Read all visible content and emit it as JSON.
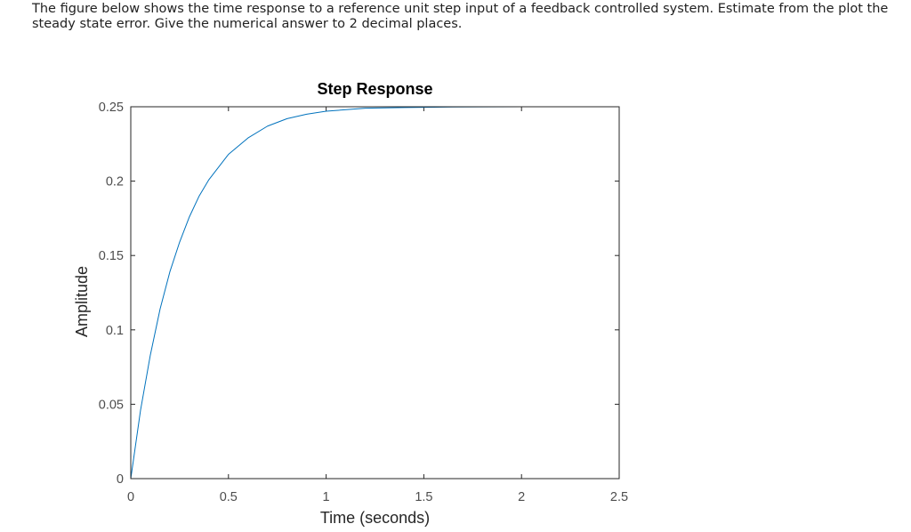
{
  "question": {
    "text": "The figure below shows the time response to a reference unit step input of a feedback controlled system. Estimate from the plot the steady state error. Give the numerical answer to 2 decimal places."
  },
  "colors": {
    "series": "#0072bd",
    "axes": "#262626",
    "ticks": "#4d4d4d"
  },
  "chart_data": {
    "type": "line",
    "title": "Step Response",
    "xlabel": "Time (seconds)",
    "ylabel": "Amplitude",
    "xlim": [
      0,
      2.5
    ],
    "ylim": [
      0,
      0.25
    ],
    "xticks": [
      "0",
      "0.5",
      "1",
      "1.5",
      "2",
      "2.5"
    ],
    "yticks": [
      "0",
      "0.05",
      "0.1",
      "0.15",
      "0.2",
      "0.25"
    ],
    "grid": false,
    "series": [
      {
        "x": [
          0,
          0.05,
          0.1,
          0.15,
          0.2,
          0.25,
          0.3,
          0.35,
          0.4,
          0.5,
          0.6,
          0.7,
          0.8,
          0.9,
          1.0,
          1.2,
          1.4,
          1.6,
          1.8,
          2.0,
          2.2,
          2.5
        ],
        "y": [
          0,
          0.046,
          0.083,
          0.114,
          0.139,
          0.159,
          0.176,
          0.19,
          0.201,
          0.218,
          0.229,
          0.237,
          0.242,
          0.245,
          0.247,
          0.249,
          0.2495,
          0.2498,
          0.2499,
          0.25,
          0.25,
          0.25
        ]
      }
    ]
  }
}
